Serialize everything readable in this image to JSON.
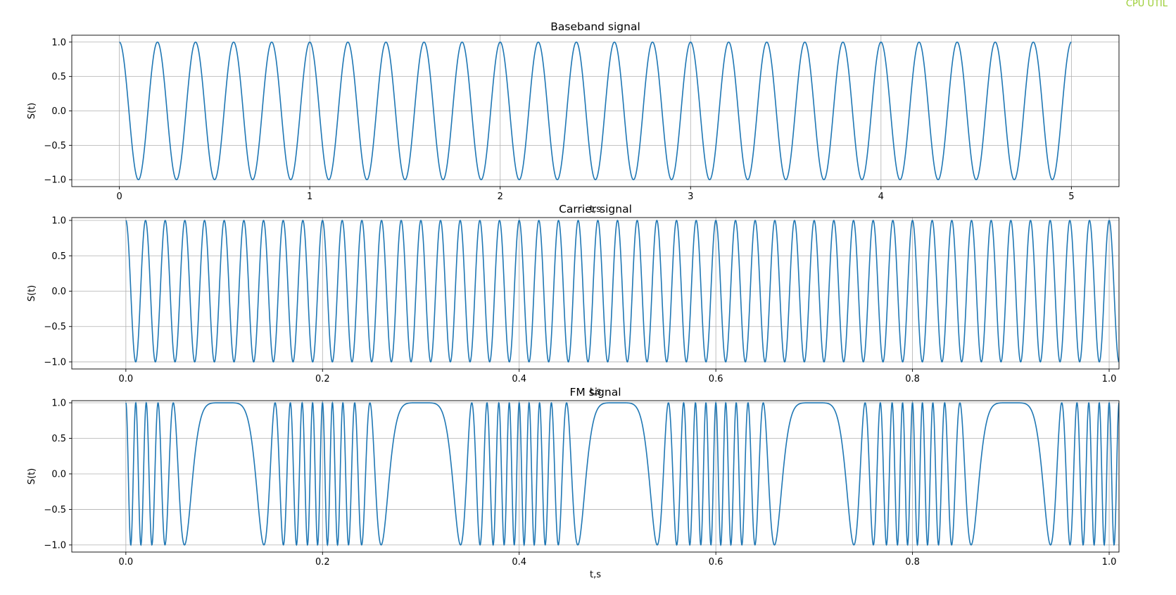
{
  "overlay": {
    "label": "CPU UTIL",
    "color": "#9acd32"
  },
  "style": {
    "line_color": "#1f77b4",
    "grid_color": "#b0b0b0",
    "axis_color": "#000000"
  },
  "chart_data": [
    {
      "type": "line",
      "title": "Baseband signal",
      "xlabel": "t,s",
      "ylabel": "S(t)",
      "xlim": [
        -0.25,
        5.25
      ],
      "ylim": [
        -1.1,
        1.1
      ],
      "xticks": [
        0,
        1,
        2,
        3,
        4,
        5
      ],
      "xtick_labels": [
        "0",
        "1",
        "2",
        "3",
        "4",
        "5"
      ],
      "yticks": [
        1.0,
        0.5,
        0.0,
        -0.5,
        -1.0
      ],
      "ytick_labels": [
        "1.0",
        "0.5",
        "0.0",
        "−0.5",
        "−1.0"
      ],
      "grid": true,
      "series": [
        {
          "function": "cosine",
          "amplitude": 1,
          "frequency_hz": 5,
          "t_start": 0,
          "t_end": 5
        }
      ]
    },
    {
      "type": "line",
      "title": "Carrier signal",
      "xlabel": "t,s",
      "ylabel": "S(t)",
      "xlim": [
        -0.055,
        1.01
      ],
      "ylim": [
        -1.1,
        1.04
      ],
      "xticks": [
        0.0,
        0.2,
        0.4,
        0.6,
        0.8,
        1.0
      ],
      "xtick_labels": [
        "0.0",
        "0.2",
        "0.4",
        "0.6",
        "0.8",
        "1.0"
      ],
      "yticks": [
        1.0,
        0.5,
        0.0,
        -0.5,
        -1.0
      ],
      "ytick_labels": [
        "1.0",
        "0.5",
        "0.0",
        "−0.5",
        "−1.0"
      ],
      "grid": true,
      "series": [
        {
          "function": "cosine",
          "amplitude": 1,
          "frequency_hz": 50,
          "t_start": 0,
          "t_end": 1.01
        }
      ]
    },
    {
      "type": "line",
      "title": "FM signal",
      "xlabel": "t,s",
      "ylabel": "S(t)",
      "xlim": [
        -0.055,
        1.01
      ],
      "ylim": [
        -1.1,
        1.03
      ],
      "xticks": [
        0.0,
        0.2,
        0.4,
        0.6,
        0.8,
        1.0
      ],
      "xtick_labels": [
        "0.0",
        "0.2",
        "0.4",
        "0.6",
        "0.8",
        "1.0"
      ],
      "yticks": [
        1.0,
        0.5,
        0.0,
        -0.5,
        -1.0
      ],
      "ytick_labels": [
        "1.0",
        "0.5",
        "0.0",
        "−0.5",
        "−1.0"
      ],
      "grid": true,
      "series": [
        {
          "function": "fm",
          "amplitude": 1,
          "carrier_hz": 50,
          "message_hz": 5,
          "deviation_hz": 50,
          "t_start": 0,
          "t_end": 1.01
        }
      ]
    }
  ]
}
